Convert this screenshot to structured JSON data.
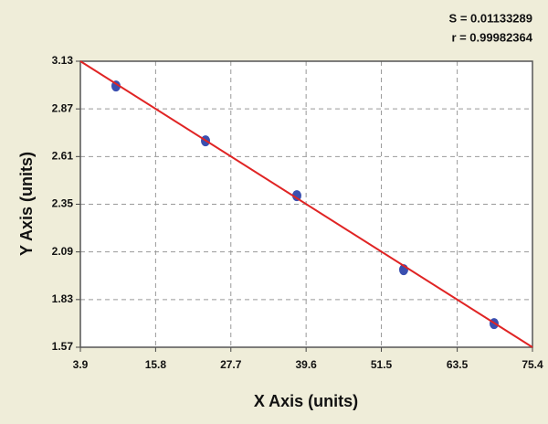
{
  "chart_data": {
    "type": "scatter",
    "annotations": [
      "S = 0.01133289",
      "r = 0.99982364"
    ],
    "x_label": "X Axis (units)",
    "y_label": "Y Axis (units)",
    "x": [
      9.53,
      23.69,
      38.13,
      55.03,
      69.33
    ],
    "values": [
      2.995,
      2.696,
      2.397,
      1.993,
      1.699
    ],
    "color": "#3a4fb0",
    "fit": {
      "x": [
        3.9,
        75.4
      ],
      "y": [
        3.13,
        1.57
      ],
      "color": "#e02424"
    },
    "xlim": [
      3.9,
      75.4
    ],
    "xticks": [
      3.9,
      15.8,
      27.7,
      39.6,
      51.5,
      63.5,
      75.4
    ],
    "ylim": [
      1.57,
      3.13
    ],
    "yticks": [
      1.57,
      1.83,
      2.09,
      2.35,
      2.61,
      2.87,
      3.13
    ],
    "grid": true
  }
}
